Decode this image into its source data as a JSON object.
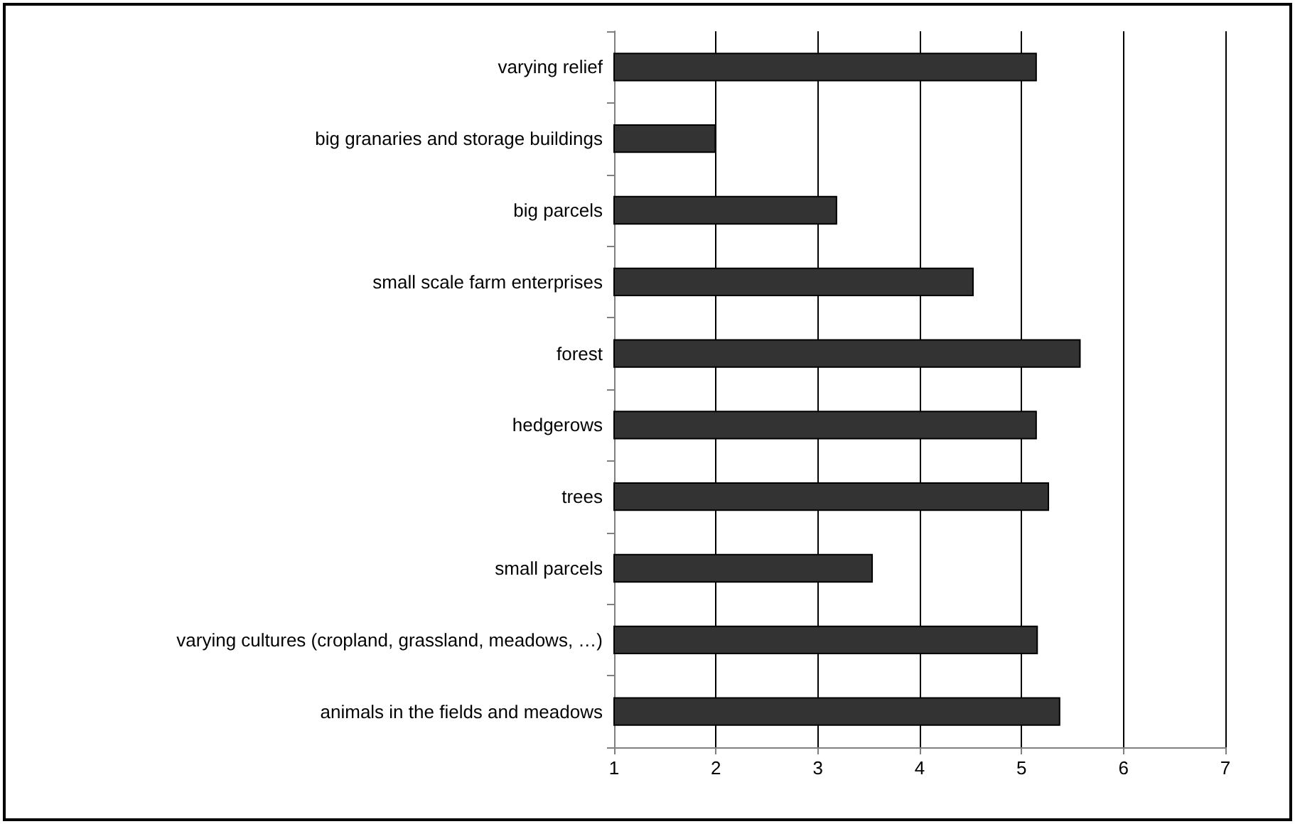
{
  "chart_data": {
    "type": "bar",
    "orientation": "horizontal",
    "categories": [
      "varying relief",
      "big granaries and storage buildings",
      "big parcels",
      "small scale farm enterprises",
      "forest",
      "hedgerows",
      "trees",
      "small parcels",
      "varying cultures (cropland, grassland, meadows, …)",
      "animals in the fields and meadows"
    ],
    "values": [
      5.15,
      2.0,
      3.19,
      4.53,
      5.58,
      5.15,
      5.27,
      3.54,
      5.16,
      5.38
    ],
    "color": "#333333",
    "xlim": [
      1,
      7
    ],
    "xticks": [
      1,
      2,
      3,
      4,
      5,
      6,
      7
    ],
    "grid": "x"
  }
}
